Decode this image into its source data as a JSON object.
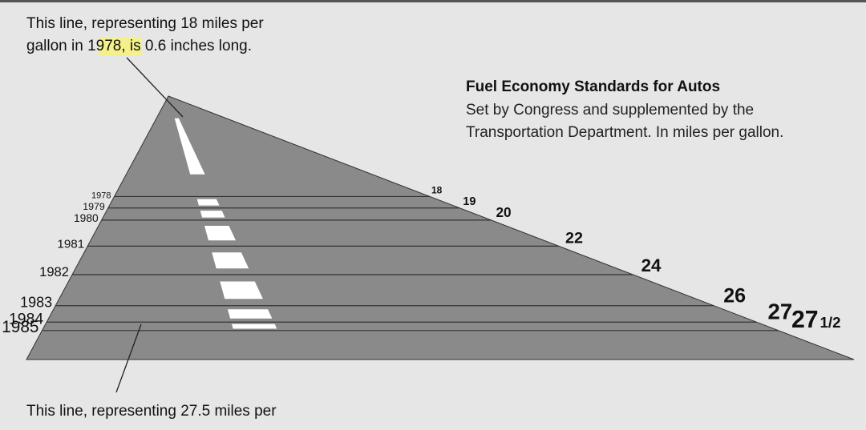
{
  "colors": {
    "background": "#e6e6e6",
    "road": "#8a8a8a",
    "road_lines": "#333333",
    "dash": "#ffffff",
    "highlight": "#f4f08a",
    "text": "#111111"
  },
  "header": {
    "title": "Fuel Economy Standards for Autos",
    "subtitle_line1": "Set by Congress and supplemented by the",
    "subtitle_line2": "Transportation Department. In miles per gallon."
  },
  "annotations": {
    "top_line1": "This line, representing 18 miles per",
    "top_line2_prefix": "gallon in ",
    "top_line2_highlight": "1978",
    "top_line2_suffix": ", is 0.6 inches long.",
    "bottom_line1": "This line, representing 27.5 miles per"
  },
  "chart_data": {
    "type": "bar",
    "title": "Fuel Economy Standards for Autos",
    "unit": "miles per gallon",
    "categories": [
      "1978",
      "1979",
      "1980",
      "1981",
      "1982",
      "1983",
      "1984",
      "1985"
    ],
    "values": [
      18,
      19,
      20,
      22,
      24,
      26,
      27,
      27.5
    ],
    "value_labels": [
      {
        "main": "18",
        "sub": ""
      },
      {
        "main": "19",
        "sub": ""
      },
      {
        "main": "20",
        "sub": ""
      },
      {
        "main": "22",
        "sub": ""
      },
      {
        "main": "24",
        "sub": ""
      },
      {
        "main": "26",
        "sub": ""
      },
      {
        "main": "27",
        "sub": ""
      },
      {
        "main": "27",
        "sub": "1/2"
      }
    ]
  }
}
